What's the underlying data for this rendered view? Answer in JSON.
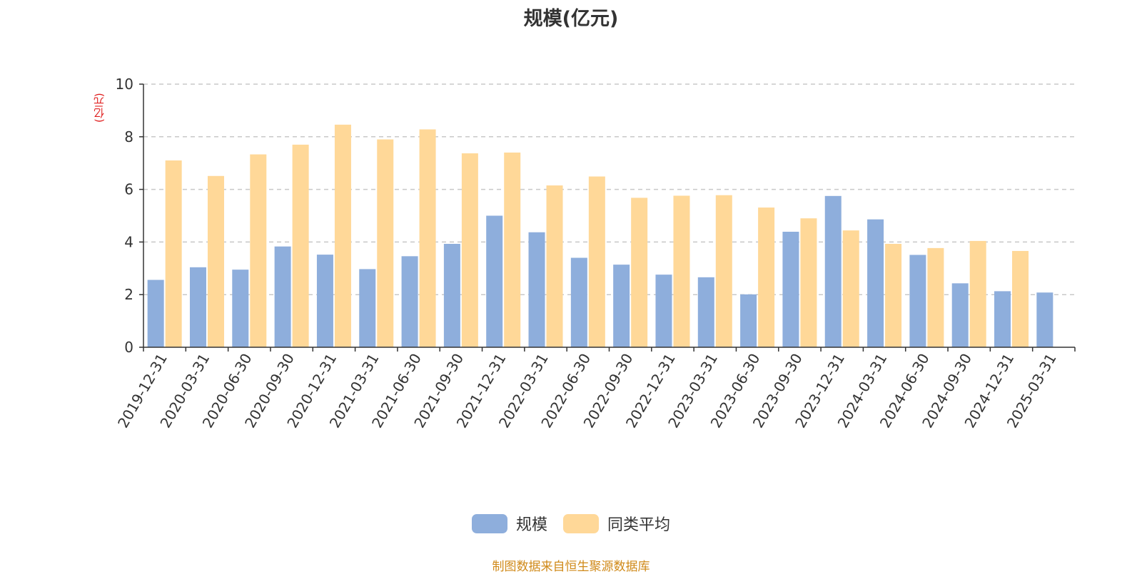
{
  "chart_data": {
    "type": "bar",
    "title": "规模(亿元)",
    "ylabel": "(亿元)",
    "xlabel": "",
    "ylim": [
      0,
      10
    ],
    "yticks": [
      0,
      2,
      4,
      6,
      8,
      10
    ],
    "grid": true,
    "legend_position": "bottom-center",
    "categories": [
      "2019-12-31",
      "2020-03-31",
      "2020-06-30",
      "2020-09-30",
      "2020-12-31",
      "2021-03-31",
      "2021-06-30",
      "2021-09-30",
      "2021-12-31",
      "2022-03-31",
      "2022-06-30",
      "2022-09-30",
      "2022-12-31",
      "2023-03-31",
      "2023-06-30",
      "2023-09-30",
      "2023-12-31",
      "2024-03-31",
      "2024-06-30",
      "2024-09-30",
      "2024-12-31",
      "2025-03-31"
    ],
    "series": [
      {
        "name": "规模",
        "color": "#8eaedc",
        "values": [
          2.56,
          3.04,
          2.95,
          3.83,
          3.52,
          2.97,
          3.46,
          3.93,
          5.0,
          4.37,
          3.4,
          3.14,
          2.76,
          2.66,
          2.01,
          4.39,
          5.75,
          4.86,
          3.51,
          2.43,
          2.13,
          2.08
        ]
      },
      {
        "name": "同类平均",
        "color": "#ffd898",
        "values": [
          7.1,
          6.51,
          7.33,
          7.7,
          8.46,
          7.9,
          8.28,
          7.37,
          7.4,
          6.15,
          6.49,
          5.68,
          5.76,
          5.78,
          5.31,
          4.9,
          4.44,
          3.93,
          3.77,
          4.04,
          3.66,
          null
        ]
      }
    ]
  },
  "footer": {
    "source": "制图数据来自恒生聚源数据库"
  }
}
